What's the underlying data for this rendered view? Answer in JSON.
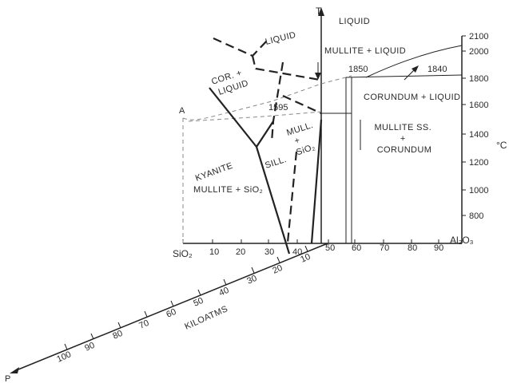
{
  "diagram": {
    "axes": {
      "t_axis_label": "T",
      "t_unit": "°C",
      "composition_left": "SiO₂",
      "composition_right": "Al₂O₃",
      "pressure_label": "KILOATMS",
      "pressure_axis_symbol": "P",
      "temperature_ticks": [
        "800",
        "1000",
        "1200",
        "1400",
        "1600",
        "1800",
        "2000",
        "2100"
      ],
      "composition_ticks": [
        "10",
        "20",
        "30",
        "40",
        "50",
        "60",
        "70",
        "80",
        "90"
      ],
      "pressure_ticks": [
        "10",
        "20",
        "30",
        "40",
        "50",
        "60",
        "70",
        "80",
        "90",
        "100"
      ]
    },
    "phase_labels": {
      "liquid_top": "LIQUID",
      "liquid_upper": "LIQUID",
      "corundum_liquid_left": "COR. +\nLIQUID",
      "mullite_liquid": "MULLITE + LIQUID",
      "corundum_liquid": "CORUNDUM + LIQUID",
      "mullite_ss_corundum": "MULLITE SS.\n+\nCORUNDUM",
      "kyanite": "KYANITE",
      "sillimanite": "SILL.",
      "mullite_sio2_small": "MULL.\n+\nSiO₂",
      "mullite_sio2": "MULLITE + SiO₂"
    },
    "temperature_annotations": [
      "1850",
      "1840",
      "1595"
    ],
    "corner_mark": "A"
  }
}
